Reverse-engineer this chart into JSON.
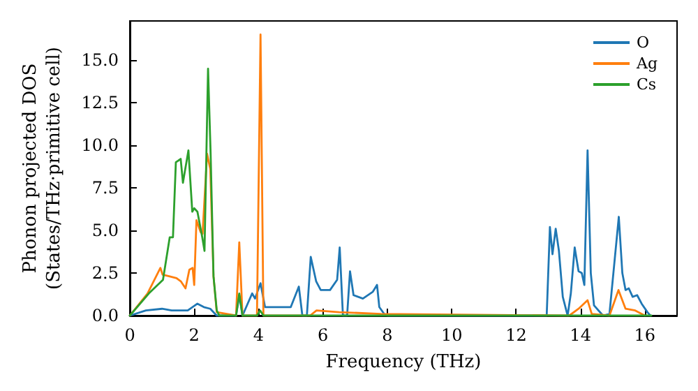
{
  "chart_data": {
    "type": "line",
    "xlabel": "Frequency (THz)",
    "ylabel": "Phonon projected DOS\n(States/THz·primitive cell)",
    "xlim": [
      0,
      17
    ],
    "xticks": [
      0,
      2,
      4,
      6,
      8,
      10,
      12,
      14,
      16
    ],
    "ylim": [
      0,
      17.3
    ],
    "yticks": [
      {
        "value": 0,
        "label": "0.0"
      },
      2.5,
      {
        "value": 5,
        "label": "5.0"
      },
      7.5,
      {
        "value": 10,
        "label": "10.0"
      },
      12.5,
      {
        "value": 15,
        "label": "15.0"
      }
    ],
    "legend": "top right",
    "grid": false,
    "marker": "none",
    "line_style": "solid",
    "series": [
      {
        "name": "O",
        "color": "#1f77b4",
        "x": [
          0,
          0.5,
          1.0,
          1.3,
          1.8,
          2.1,
          2.3,
          2.5,
          2.7,
          3.3,
          3.4,
          3.5,
          3.8,
          3.89,
          4.06,
          4.2,
          5.0,
          5.25,
          5.36,
          5.5,
          5.62,
          5.79,
          5.93,
          6.22,
          6.44,
          6.52,
          6.62,
          6.75,
          6.84,
          6.95,
          7.24,
          7.55,
          7.68,
          7.75,
          7.9,
          8.0,
          12.95,
          13.05,
          13.13,
          13.23,
          13.33,
          13.45,
          13.6,
          13.7,
          13.82,
          13.94,
          14.04,
          14.12,
          14.22,
          14.32,
          14.42,
          14.7,
          14.9,
          15.19,
          15.3,
          15.4,
          15.5,
          15.62,
          15.76,
          15.9,
          16.08,
          16.17
        ],
        "values": [
          0,
          0.3,
          0.4,
          0.3,
          0.3,
          0.7,
          0.5,
          0.4,
          0,
          0,
          1.2,
          0,
          1.3,
          1.0,
          1.9,
          0.5,
          0.5,
          1.7,
          0,
          0,
          3.45,
          2.0,
          1.5,
          1.5,
          2.1,
          4.0,
          0,
          0,
          2.6,
          1.2,
          1.0,
          1.4,
          1.8,
          0.5,
          0.1,
          0,
          0,
          5.2,
          3.6,
          5.1,
          3.8,
          1.1,
          0,
          1.3,
          4.0,
          2.6,
          2.5,
          1.8,
          9.7,
          2.5,
          0.6,
          0,
          0.1,
          5.8,
          2.5,
          1.5,
          1.6,
          1.1,
          1.2,
          0.7,
          0.2,
          0
        ]
      },
      {
        "name": "Ag",
        "color": "#ff7f0e",
        "x": [
          0,
          0.55,
          0.95,
          1.02,
          1.24,
          1.45,
          1.59,
          1.73,
          1.85,
          1.95,
          2.0,
          2.07,
          2.2,
          2.26,
          2.4,
          2.5,
          2.6,
          2.7,
          3.3,
          3.4,
          3.5,
          3.95,
          4.06,
          4.15,
          5.6,
          5.8,
          6.5,
          7.8,
          13.65,
          13.94,
          14.22,
          14.35,
          14.9,
          15.18,
          15.4,
          15.7,
          16.0
        ],
        "values": [
          0,
          1.3,
          2.8,
          2.4,
          2.3,
          2.2,
          2.0,
          1.6,
          2.7,
          2.8,
          1.8,
          5.6,
          4.9,
          4.8,
          9.5,
          8.6,
          2.3,
          0.2,
          0,
          4.3,
          0,
          0,
          16.5,
          0,
          0,
          0.3,
          0.2,
          0.1,
          0,
          0.4,
          0.9,
          0.1,
          0,
          1.5,
          0.4,
          0.3,
          0
        ]
      },
      {
        "name": "Cs",
        "color": "#2ca02c",
        "x": [
          0,
          0.59,
          1.03,
          1.24,
          1.34,
          1.43,
          1.58,
          1.65,
          1.82,
          1.94,
          2.0,
          2.1,
          2.25,
          2.32,
          2.43,
          2.51,
          2.6,
          2.7,
          2.78,
          3.3,
          3.4,
          3.5,
          3.95,
          4.05,
          4.15,
          16.2
        ],
        "values": [
          0,
          1.3,
          2.1,
          4.6,
          4.6,
          9.0,
          9.2,
          7.8,
          9.7,
          6.1,
          6.3,
          6.1,
          4.6,
          3.8,
          14.5,
          9.5,
          2.3,
          0.3,
          0,
          0,
          1.3,
          0,
          0,
          0.3,
          0,
          0
        ]
      }
    ]
  }
}
